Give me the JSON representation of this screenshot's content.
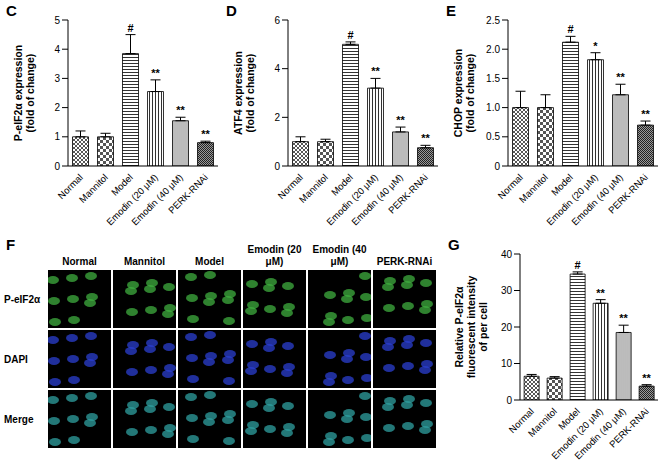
{
  "chart_data": [
    {
      "panel": "C",
      "type": "bar",
      "y_label": [
        "P-eIF2α expression",
        "(fold of change)"
      ],
      "categories": [
        "Normal",
        "Mannitol",
        "Model",
        "Emodin (20 μM)",
        "Emodin (40 μM)",
        "PERK-RNAi"
      ],
      "values": [
        1.0,
        1.0,
        3.85,
        2.55,
        1.55,
        0.8
      ],
      "errors": [
        0.2,
        0.12,
        0.65,
        0.4,
        0.12,
        0.05
      ],
      "annotations": [
        null,
        null,
        "#",
        "**",
        "**",
        "**"
      ],
      "colors": [
        "#444444",
        "#555555",
        "#333333",
        "#333333",
        "#555555",
        "#222222"
      ],
      "ylim": [
        0,
        5
      ],
      "yticks": [
        0,
        1,
        2,
        3,
        4,
        5
      ],
      "grid": false
    },
    {
      "panel": "D",
      "type": "bar",
      "y_label": [
        "ATF4 expression",
        "(fold of change)"
      ],
      "categories": [
        "Normal",
        "Mannitol",
        "Model",
        "Emodin (20 μM)",
        "Emodin (40 μM)",
        "PERK-RNAi"
      ],
      "values": [
        1.0,
        1.0,
        5.0,
        3.2,
        1.4,
        0.75
      ],
      "errors": [
        0.2,
        0.1,
        0.1,
        0.4,
        0.2,
        0.1
      ],
      "annotations": [
        null,
        null,
        "#",
        "**",
        "**",
        "**"
      ],
      "colors": [
        "#444444",
        "#555555",
        "#333333",
        "#333333",
        "#555555",
        "#222222"
      ],
      "ylim": [
        0,
        6
      ],
      "yticks": [
        0,
        2,
        4,
        6
      ],
      "grid": false
    },
    {
      "panel": "E",
      "type": "bar",
      "y_label": [
        "CHOP expression",
        "(fold of change)"
      ],
      "categories": [
        "Normal",
        "Mannitol",
        "Model",
        "Emodin (20 μM)",
        "Emodin (40 μM)",
        "PERK-RNAi"
      ],
      "values": [
        1.0,
        1.0,
        2.12,
        1.82,
        1.22,
        0.7
      ],
      "errors": [
        0.28,
        0.22,
        0.1,
        0.12,
        0.18,
        0.07
      ],
      "annotations": [
        null,
        null,
        "#",
        "*",
        "**",
        "**"
      ],
      "colors": [
        "#444444",
        "#555555",
        "#333333",
        "#333333",
        "#555555",
        "#222222"
      ],
      "ylim": [
        0,
        2.5
      ],
      "yticks": [
        0,
        0.5,
        {
          "value": 1,
          "label": "1.0"
        },
        1.5,
        {
          "value": 2,
          "label": "2.0"
        },
        2.5
      ],
      "grid": false
    },
    {
      "panel": "G",
      "type": "bar",
      "y_label": [
        "Relative P-eIF2α",
        "fluorescent intensity",
        "of per cell"
      ],
      "categories": [
        "Normal",
        "Mannitol",
        "Model",
        "Emodin (20 μM)",
        "Emodin (40 μM)",
        "PERK-RNAi"
      ],
      "values": [
        6.5,
        6.0,
        34.5,
        26.5,
        18.5,
        3.8
      ],
      "errors": [
        0.5,
        0.4,
        0.6,
        1.0,
        2.0,
        0.4
      ],
      "annotations": [
        null,
        null,
        "#",
        "**",
        "**",
        "**"
      ],
      "colors": [
        "#444444",
        "#555555",
        "#333333",
        "#333333",
        "#555555",
        "#222222"
      ],
      "ylim": [
        0,
        40
      ],
      "yticks": [
        0,
        10,
        20,
        30,
        40
      ],
      "grid": false
    }
  ],
  "image_panel": {
    "panel": "F",
    "columns": [
      "Normal",
      "Mannitol",
      "Model",
      "Emodin (20 μM)",
      "Emodin (40 μM)",
      "PERK-RNAi"
    ],
    "rows": [
      "P-eIF2α",
      "DAPI",
      "Merge"
    ]
  }
}
